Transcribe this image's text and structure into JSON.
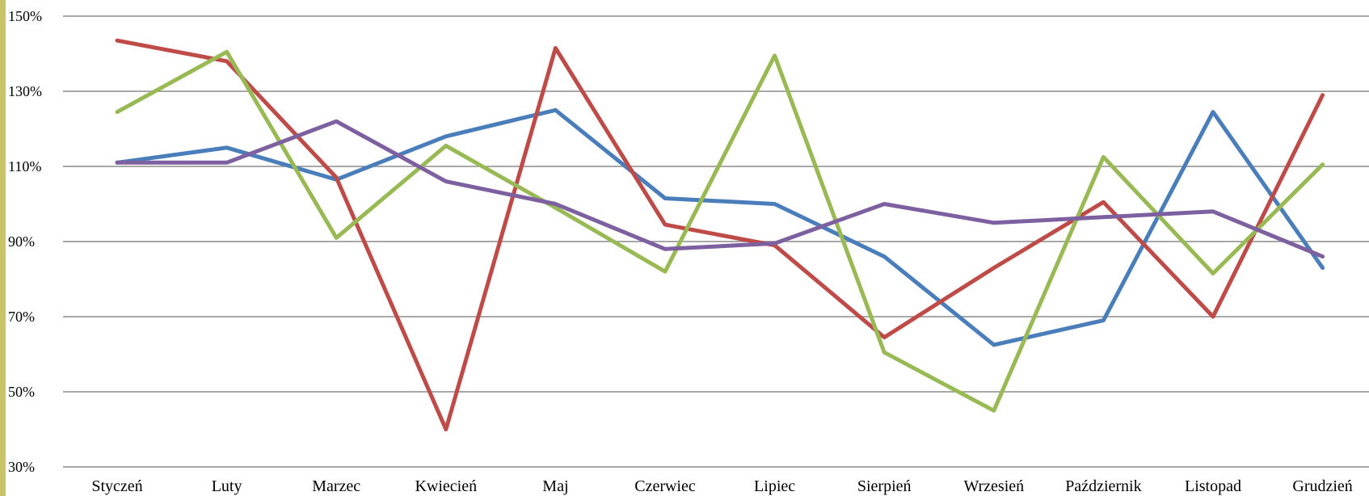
{
  "chart_data": {
    "type": "line",
    "title": "",
    "xlabel": "",
    "ylabel": "",
    "ylim": [
      30,
      150
    ],
    "yticks": [
      30,
      50,
      70,
      90,
      110,
      130,
      150
    ],
    "ytick_labels": [
      "30%",
      "50%",
      "70%",
      "90%",
      "110%",
      "130%",
      "150%"
    ],
    "grid": true,
    "legend": "none",
    "categories": [
      "Styczeń",
      "Luty",
      "Marzec",
      "Kwiecień",
      "Maj",
      "Czerwiec",
      "Lipiec",
      "Sierpień",
      "Wrzesień",
      "Październik",
      "Listopad",
      "Grudzień"
    ],
    "series": [
      {
        "color": "#4a7ebb",
        "values": [
          111,
          115,
          106.5,
          118,
          125,
          101.5,
          100,
          86,
          62.5,
          69,
          124.5,
          83
        ]
      },
      {
        "color": "#be4b48",
        "values": [
          143.5,
          138,
          107,
          40,
          141.5,
          94.5,
          89,
          64.5,
          83,
          100.5,
          70,
          129
        ]
      },
      {
        "color": "#98b954",
        "values": [
          124.5,
          140.5,
          91,
          115.5,
          99,
          82,
          139.5,
          60.5,
          45,
          112.5,
          81.5,
          110.5
        ]
      },
      {
        "color": "#7d60a0",
        "values": [
          111,
          111,
          122,
          106,
          100,
          88,
          89.5,
          100,
          95,
          96.5,
          98,
          86
        ]
      }
    ]
  }
}
